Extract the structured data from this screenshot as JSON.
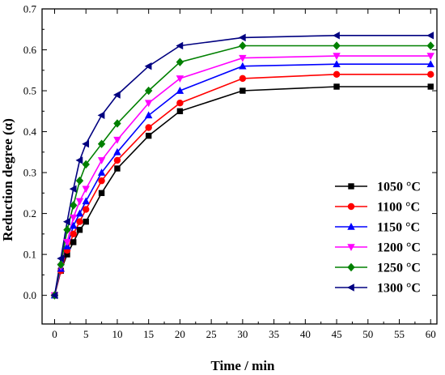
{
  "chart_data": {
    "type": "line",
    "title": "",
    "xlabel": "Time / min",
    "ylabel": "Reduction degree (α)",
    "xlim": [
      -2,
      61
    ],
    "ylim": [
      -0.07,
      0.7
    ],
    "xticks": [
      0,
      5,
      10,
      15,
      20,
      25,
      30,
      35,
      40,
      45,
      50,
      55,
      60
    ],
    "yticks": [
      0.0,
      0.1,
      0.2,
      0.3,
      0.4,
      0.5,
      0.6,
      0.7
    ],
    "ytick_labels": [
      "0.0",
      "0.1",
      "0.2",
      "0.3",
      "0.4",
      "0.5",
      "0.6",
      "0.7"
    ],
    "grid": false,
    "legend_position": "bottom-right",
    "x": [
      0,
      1,
      2,
      3,
      4,
      5,
      7.5,
      10,
      15,
      20,
      30,
      45,
      60
    ],
    "series": [
      {
        "name": "1050 °C",
        "color": "#000000",
        "marker": "square",
        "values": [
          0,
          0.06,
          0.1,
          0.13,
          0.16,
          0.18,
          0.25,
          0.31,
          0.39,
          0.45,
          0.5,
          0.51,
          0.51
        ]
      },
      {
        "name": "1100 °C",
        "color": "#ff0000",
        "marker": "circle",
        "values": [
          0,
          0.06,
          0.11,
          0.15,
          0.18,
          0.21,
          0.28,
          0.33,
          0.41,
          0.47,
          0.53,
          0.54,
          0.54
        ]
      },
      {
        "name": "1150 °C",
        "color": "#0000ff",
        "marker": "triangle-up",
        "values": [
          0,
          0.065,
          0.12,
          0.17,
          0.2,
          0.23,
          0.3,
          0.35,
          0.44,
          0.5,
          0.56,
          0.565,
          0.565
        ]
      },
      {
        "name": "1200 °C",
        "color": "#ff00ff",
        "marker": "triangle-down",
        "values": [
          0,
          0.07,
          0.13,
          0.19,
          0.23,
          0.26,
          0.33,
          0.38,
          0.47,
          0.53,
          0.58,
          0.585,
          0.585
        ]
      },
      {
        "name": "1250 °C",
        "color": "#008000",
        "marker": "diamond",
        "values": [
          0,
          0.075,
          0.16,
          0.22,
          0.28,
          0.32,
          0.37,
          0.42,
          0.5,
          0.57,
          0.61,
          0.61,
          0.61
        ]
      },
      {
        "name": "1300 °C",
        "color": "#000080",
        "marker": "triangle-left",
        "values": [
          0,
          0.09,
          0.18,
          0.26,
          0.33,
          0.37,
          0.44,
          0.49,
          0.56,
          0.61,
          0.63,
          0.635,
          0.635
        ]
      }
    ]
  }
}
